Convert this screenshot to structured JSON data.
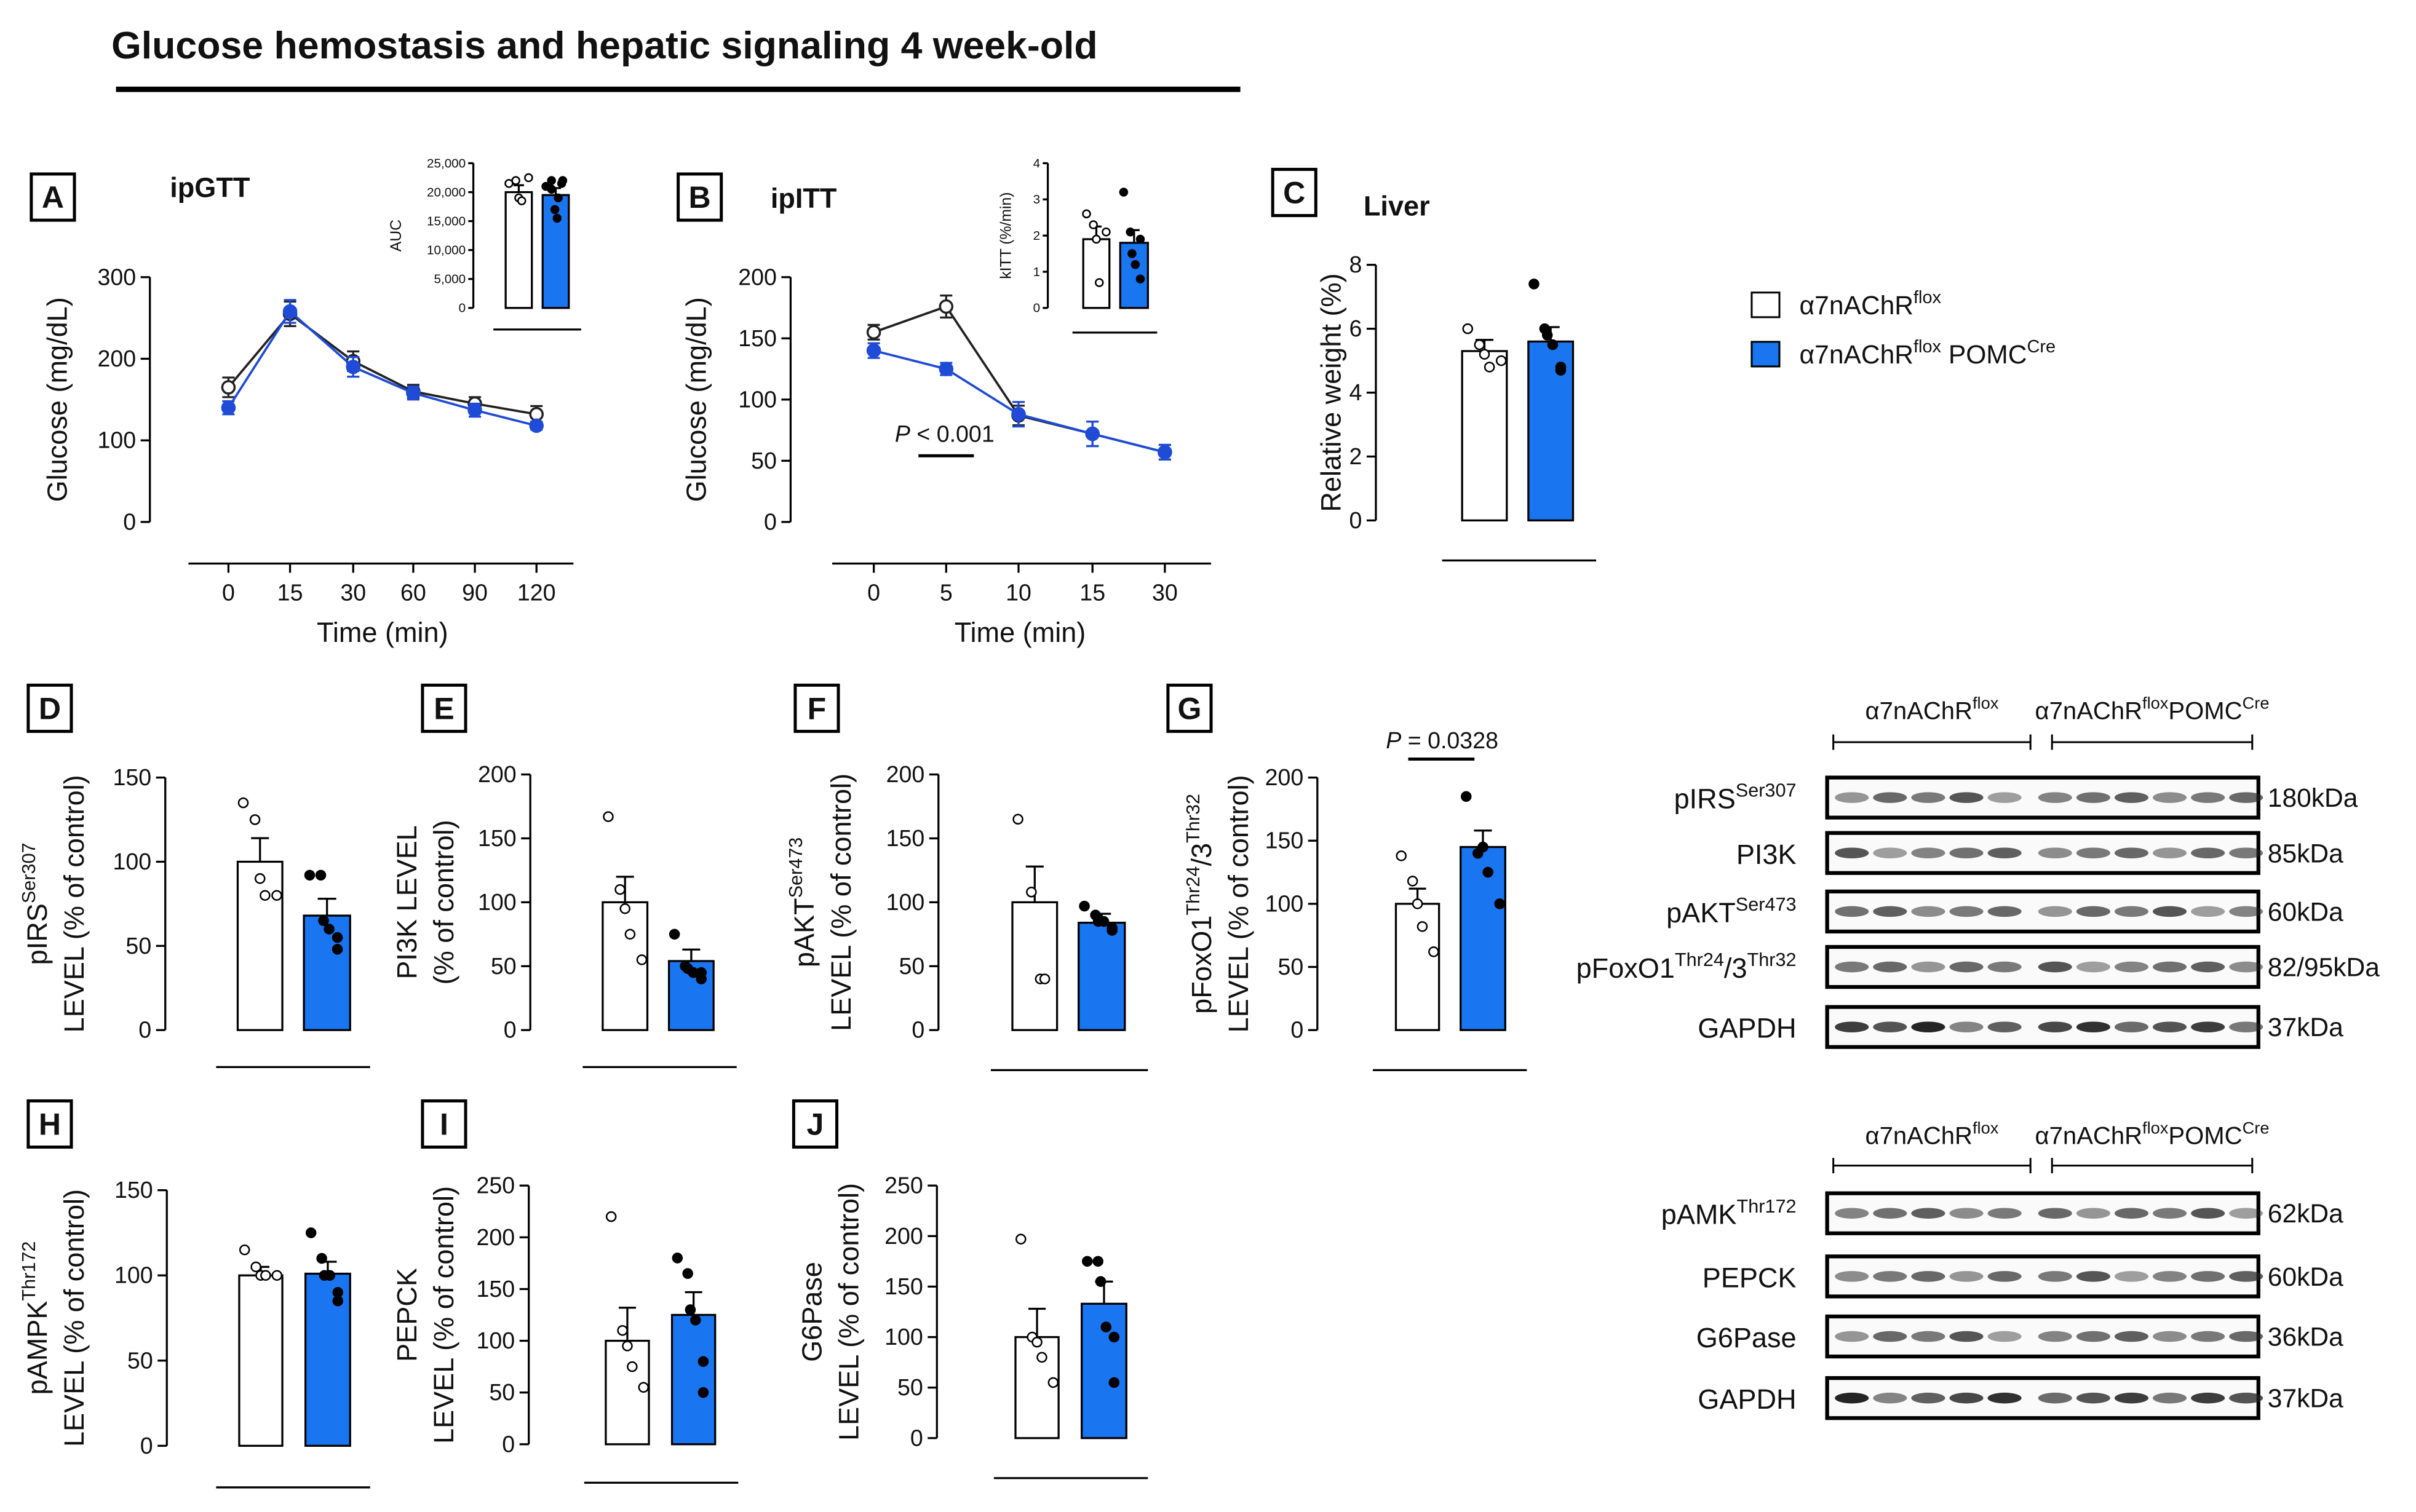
{
  "title": "Glucose hemostasis and hepatic signaling  4 week-old",
  "legend": [
    {
      "color": "#ffffff",
      "text": [
        "α7nAChR",
        {
          "sup": "flox"
        }
      ]
    },
    {
      "color": "#1a75f0",
      "text": [
        "α7nAChR",
        {
          "sup": "flox"
        },
        " POMC",
        {
          "sup": "Cre"
        }
      ]
    }
  ],
  "chart_data": [
    {
      "type": "line",
      "label": "A",
      "title": "ipGTT",
      "ylabel": [
        [
          "Glucose (mg/dL)"
        ]
      ],
      "xlabel": "Time  (min)",
      "categories": [
        "0",
        "15",
        "30",
        "60",
        "90",
        "120"
      ],
      "ylim": [
        0,
        300
      ],
      "yticks": [
        0,
        100,
        200,
        300
      ],
      "series": [
        {
          "color": "#222222",
          "marker": "open",
          "values": [
            165,
            255,
            197,
            160,
            145,
            132
          ],
          "errors": [
            12,
            15,
            12,
            8,
            8,
            10
          ]
        },
        {
          "color": "#1f4bd6",
          "marker": "filled",
          "values": [
            140,
            258,
            190,
            158,
            137,
            118
          ],
          "errors": [
            8,
            14,
            12,
            8,
            8,
            5
          ]
        }
      ]
    },
    {
      "type": "bar",
      "ylabel": [
        [
          "AUC"
        ]
      ],
      "ylim": [
        0,
        25000
      ],
      "yticks": [
        0,
        {
          "value": 5000,
          "label": "5,000"
        },
        {
          "value": 10000,
          "label": "10,000"
        },
        {
          "value": 15000,
          "label": "15,000"
        },
        {
          "value": 20000,
          "label": "20,000"
        },
        {
          "value": 25000,
          "label": "25,000"
        }
      ],
      "series": [
        {
          "color": "#ffffff",
          "marker": "open",
          "value": 20000,
          "error": 1200,
          "points": [
            21500,
            22000,
            19000,
            18500,
            22500
          ]
        },
        {
          "color": "#1a75f0",
          "marker": "filled",
          "value": 19500,
          "error": 1200,
          "points": [
            21000,
            22000,
            20500,
            17000,
            15500,
            19000,
            22000,
            21500
          ]
        }
      ]
    },
    {
      "type": "line",
      "label": "B",
      "title": "ipITT",
      "ylabel": [
        [
          "Glucose (mg/dL)"
        ]
      ],
      "xlabel": "Time  (min)",
      "categories": [
        "0",
        "5",
        "10",
        "15",
        "30"
      ],
      "ylim": [
        0,
        200
      ],
      "yticks": [
        0,
        50,
        100,
        150,
        200
      ],
      "annotation": [
        {
          "it": "P"
        },
        " < 0.001"
      ],
      "series": [
        {
          "color": "#222222",
          "marker": "open",
          "values": [
            155,
            176,
            87,
            72,
            57
          ],
          "errors": [
            6,
            9,
            8,
            10,
            6
          ]
        },
        {
          "color": "#1f4bd6",
          "marker": "filled",
          "values": [
            140,
            125,
            88,
            72,
            57
          ],
          "errors": [
            6,
            5,
            10,
            10,
            6
          ]
        }
      ]
    },
    {
      "type": "bar",
      "ylabel": [
        [
          "kITT (%/min)"
        ]
      ],
      "ylim": [
        0,
        4
      ],
      "yticks": [
        0,
        1,
        2,
        3,
        4
      ],
      "series": [
        {
          "color": "#ffffff",
          "marker": "open",
          "value": 1.9,
          "error": 0.35,
          "points": [
            2.6,
            2.3,
            1.9,
            0.7,
            2.1
          ]
        },
        {
          "color": "#1a75f0",
          "marker": "filled",
          "value": 1.8,
          "error": 0.35,
          "points": [
            3.2,
            2.1,
            1.5,
            1.2,
            0.8,
            1.9
          ]
        }
      ]
    },
    {
      "type": "bar",
      "label": "C",
      "title": "Liver",
      "ylabel": [
        [
          "Relative weight (%)"
        ]
      ],
      "ylim": [
        0,
        8
      ],
      "yticks": [
        0,
        2,
        4,
        6,
        8
      ],
      "series": [
        {
          "color": "#ffffff",
          "marker": "open",
          "value": 5.3,
          "error": 0.35,
          "points": [
            6.0,
            5.5,
            5.2,
            4.8,
            5.0
          ]
        },
        {
          "color": "#1a75f0",
          "marker": "filled",
          "value": 5.6,
          "error": 0.45,
          "points": [
            7.4,
            6.0,
            5.8,
            5.5,
            4.8,
            4.7
          ]
        }
      ]
    },
    {
      "type": "bar",
      "label": "D",
      "ylabel": [
        [
          "pIRS",
          {
            "sup": "Ser307"
          }
        ],
        [
          "LEVEL (% of control)"
        ]
      ],
      "ylim": [
        0,
        150
      ],
      "yticks": [
        0,
        50,
        100,
        150
      ],
      "series": [
        {
          "color": "#ffffff",
          "marker": "open",
          "value": 100,
          "error": 14,
          "points": [
            135,
            125,
            90,
            80,
            80
          ]
        },
        {
          "color": "#1a75f0",
          "marker": "filled",
          "value": 68,
          "error": 10,
          "points": [
            92,
            92,
            65,
            60,
            55,
            48
          ]
        }
      ]
    },
    {
      "type": "bar",
      "label": "E",
      "ylabel": [
        [
          "PI3K LEVEL"
        ],
        [
          "(% of control)"
        ]
      ],
      "ylim": [
        0,
        200
      ],
      "yticks": [
        0,
        50,
        100,
        150,
        200
      ],
      "series": [
        {
          "color": "#ffffff",
          "marker": "open",
          "value": 100,
          "error": 20,
          "points": [
            167,
            110,
            95,
            75,
            55
          ]
        },
        {
          "color": "#1a75f0",
          "marker": "filled",
          "value": 54,
          "error": 9,
          "points": [
            75,
            50,
            48,
            45,
            40,
            45
          ]
        }
      ]
    },
    {
      "type": "bar",
      "label": "F",
      "ylabel": [
        [
          "pAKT",
          {
            "sup": "Ser473"
          }
        ],
        [
          "LEVEL (% of control)"
        ]
      ],
      "ylim": [
        0,
        200
      ],
      "yticks": [
        0,
        50,
        100,
        150,
        200
      ],
      "series": [
        {
          "color": "#ffffff",
          "marker": "open",
          "value": 100,
          "error": 28,
          "points": [
            165,
            108,
            40,
            40
          ]
        },
        {
          "color": "#1a75f0",
          "marker": "filled",
          "value": 84,
          "error": 7,
          "points": [
            97,
            90,
            85,
            85,
            80,
            78
          ]
        }
      ]
    },
    {
      "type": "bar",
      "label": "G",
      "ylabel": [
        [
          "pFoxO1",
          {
            "sup": "Thr24"
          },
          "/3",
          {
            "sup": "Thr32"
          }
        ],
        [
          "LEVEL (% of control)"
        ]
      ],
      "ylim": [
        0,
        200
      ],
      "yticks": [
        0,
        50,
        100,
        150,
        200
      ],
      "annotation": [
        {
          "it": "P"
        },
        " = 0.0328"
      ],
      "series": [
        {
          "color": "#ffffff",
          "marker": "open",
          "value": 100,
          "error": 12,
          "points": [
            138,
            118,
            100,
            82,
            62
          ]
        },
        {
          "color": "#1a75f0",
          "marker": "filled",
          "value": 145,
          "error": 13,
          "points": [
            185,
            140,
            145,
            125,
            100
          ]
        }
      ]
    },
    {
      "type": "bar",
      "label": "H",
      "ylabel": [
        [
          "pAMPK",
          {
            "sup": "Thr172"
          }
        ],
        [
          "LEVEL (% of control)"
        ]
      ],
      "ylim": [
        0,
        150
      ],
      "yticks": [
        0,
        50,
        100,
        150
      ],
      "series": [
        {
          "color": "#ffffff",
          "marker": "open",
          "value": 100,
          "error": 5,
          "points": [
            115,
            105,
            100,
            100,
            100
          ]
        },
        {
          "color": "#1a75f0",
          "marker": "filled",
          "value": 101,
          "error": 7,
          "points": [
            125,
            110,
            100,
            100,
            90,
            85
          ]
        }
      ]
    },
    {
      "type": "bar",
      "label": "I",
      "ylabel": [
        [
          "PEPCK"
        ],
        [
          "LEVEL (% of control)"
        ]
      ],
      "ylim": [
        0,
        250
      ],
      "yticks": [
        0,
        50,
        100,
        150,
        200,
        250
      ],
      "series": [
        {
          "color": "#ffffff",
          "marker": "open",
          "value": 100,
          "error": 32,
          "points": [
            220,
            110,
            95,
            75,
            55
          ]
        },
        {
          "color": "#1a75f0",
          "marker": "filled",
          "value": 125,
          "error": 22,
          "points": [
            180,
            165,
            130,
            120,
            80,
            50
          ]
        }
      ]
    },
    {
      "type": "bar",
      "label": "J",
      "ylabel": [
        [
          "G6Pase"
        ],
        [
          "LEVEL (% of control)"
        ]
      ],
      "ylim": [
        0,
        250
      ],
      "yticks": [
        0,
        50,
        100,
        150,
        200,
        250
      ],
      "series": [
        {
          "color": "#ffffff",
          "marker": "open",
          "value": 100,
          "error": 28,
          "points": [
            197,
            100,
            95,
            80,
            55
          ]
        },
        {
          "color": "#1a75f0",
          "marker": "filled",
          "value": 133,
          "error": 22,
          "points": [
            175,
            175,
            155,
            110,
            100,
            55
          ]
        }
      ]
    }
  ],
  "blots": [
    {
      "headers": [
        [
          "α7nAChR",
          {
            "sup": "flox"
          }
        ],
        [
          "α7nAChR",
          {
            "sup": "flox"
          },
          "POMC",
          {
            "sup": "Cre"
          }
        ]
      ],
      "rows": [
        {
          "label": [
            "pIRS",
            {
              "sup": "Ser307"
            }
          ],
          "kda": "180kDa"
        },
        {
          "label": [
            "PI3K"
          ],
          "kda": "85kDa"
        },
        {
          "label": [
            "pAKT",
            {
              "sup": "Ser473"
            }
          ],
          "kda": "60kDa"
        },
        {
          "label": [
            "pFoxO1",
            {
              "sup": "Thr24"
            },
            "/3",
            {
              "sup": "Thr32"
            }
          ],
          "kda": "82/95kDa"
        },
        {
          "label": [
            "GAPDH"
          ],
          "kda": "37kDa"
        }
      ]
    },
    {
      "headers": [
        [
          "α7nAChR",
          {
            "sup": "flox"
          }
        ],
        [
          "α7nAChR",
          {
            "sup": "flox"
          },
          "POMC",
          {
            "sup": "Cre"
          }
        ]
      ],
      "rows": [
        {
          "label": [
            "pAMK",
            {
              "sup": "Thr172"
            }
          ],
          "kda": "62kDa"
        },
        {
          "label": [
            "PEPCK"
          ],
          "kda": "60kDa"
        },
        {
          "label": [
            "G6Pase"
          ],
          "kda": "36kDa"
        },
        {
          "label": [
            "GAPDH"
          ],
          "kda": "37kDa"
        }
      ]
    }
  ]
}
